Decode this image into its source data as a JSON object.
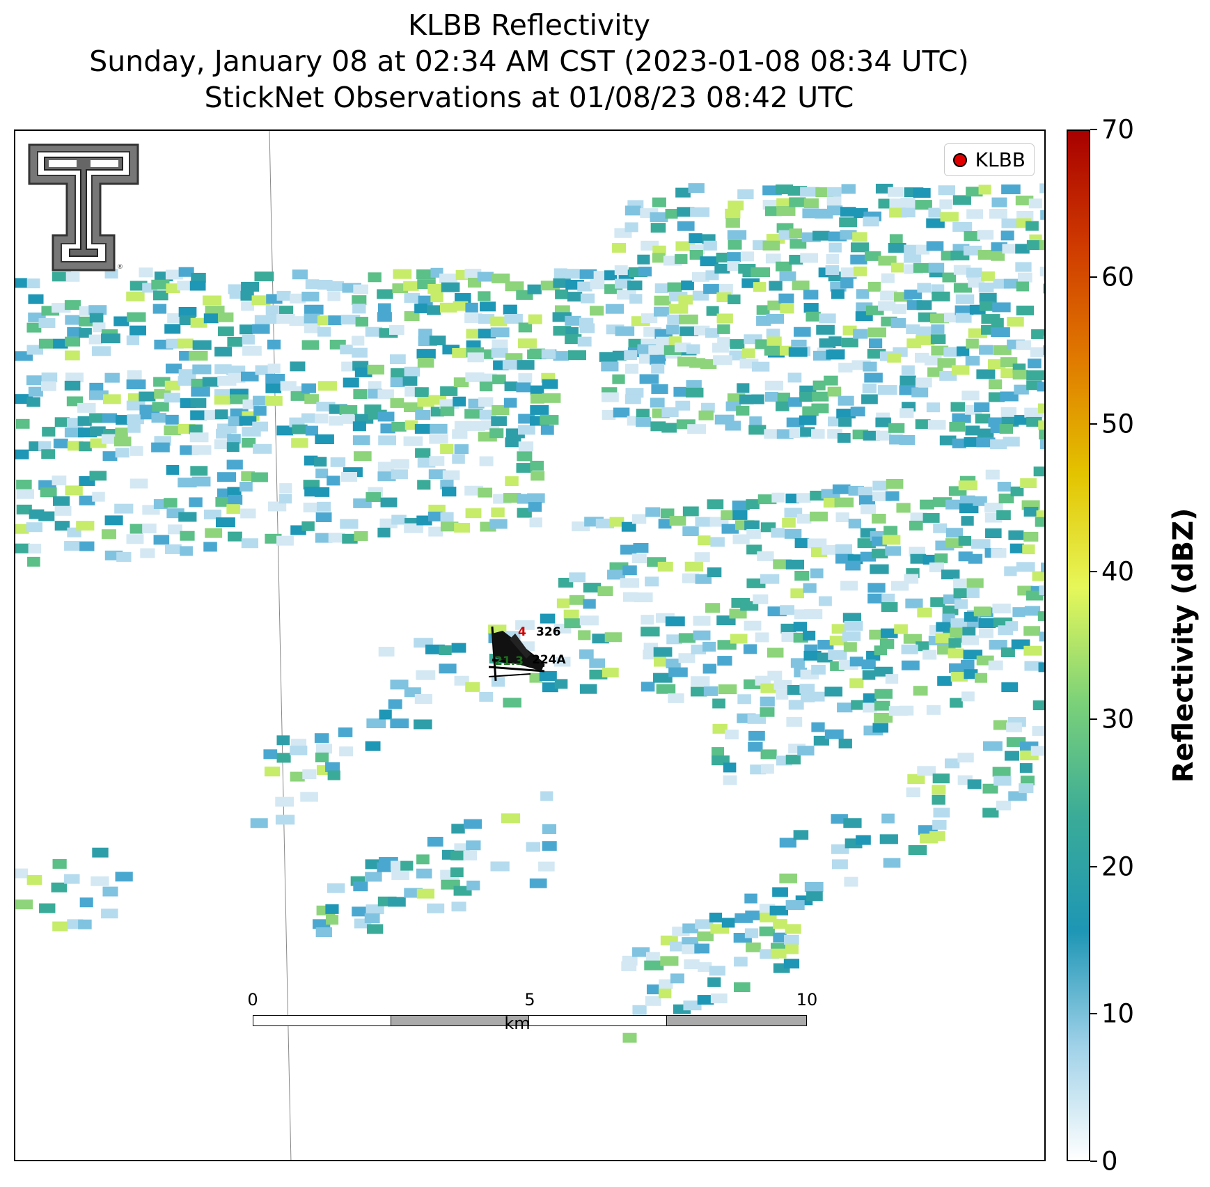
{
  "title": {
    "line1": "KLBB Reflectivity",
    "line2": "Sunday, January 08 at 02:34 AM CST (2023-01-08 08:34 UTC)",
    "line3": "StickNet Observations at 01/08/23 08:42 UTC"
  },
  "legend": {
    "label": "KLBB",
    "marker_color": "#e10000"
  },
  "logo": {
    "name": "Texas Tech double-T logo",
    "text": "®"
  },
  "stations": [
    {
      "id": "326",
      "value": "4",
      "value_color": "#cc0000"
    },
    {
      "id": "224A",
      "value": "21.3",
      "value_color": "#1a6e1a"
    }
  ],
  "scale_bar": {
    "labels": [
      "0",
      "5",
      "10"
    ],
    "unit": "km"
  },
  "colorbar": {
    "label": "Reflectivity (dBZ)",
    "ticks": [
      "0",
      "10",
      "20",
      "30",
      "40",
      "50",
      "60",
      "70"
    ],
    "min": 0,
    "max": 70,
    "colors": [
      "#ffffff",
      "#9fd1e8",
      "#1e96b5",
      "#3aab98",
      "#7bd179",
      "#e6f75a",
      "#e3c300",
      "#e07a00",
      "#cf3a00",
      "#a80000"
    ]
  },
  "reflectivity_palette": [
    "#d3e8f3",
    "#b5dbee",
    "#7fc3e0",
    "#4aa8d0",
    "#1e96b5",
    "#2e9fa8",
    "#3aab98",
    "#5bbf88",
    "#8dd47a",
    "#c6ec6a"
  ]
}
